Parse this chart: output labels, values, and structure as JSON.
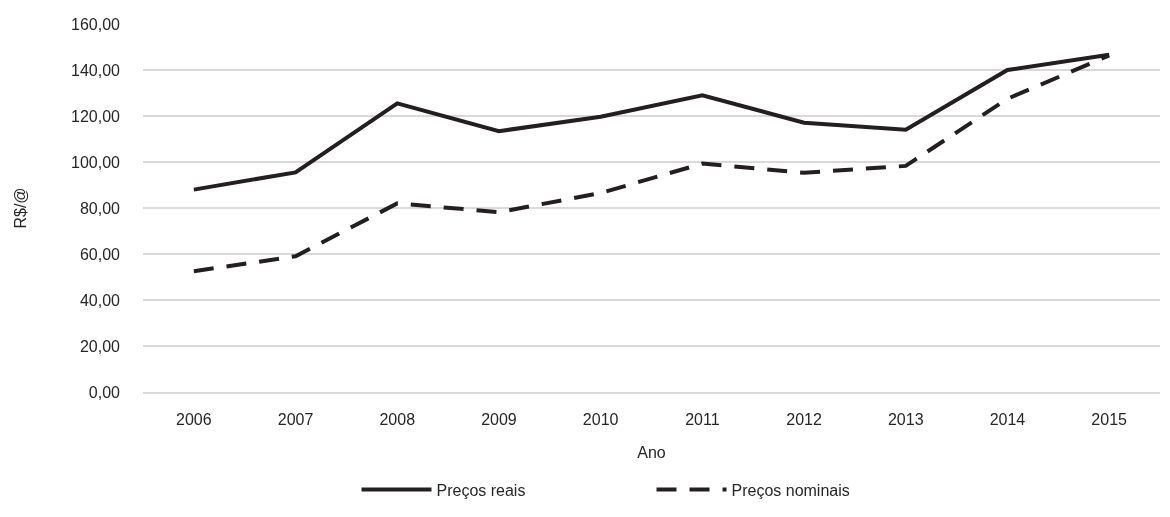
{
  "chart_data": {
    "type": "line",
    "xlabel": "Ano",
    "ylabel": "R$/@",
    "categories": [
      "2006",
      "2007",
      "2008",
      "2009",
      "2010",
      "2011",
      "2012",
      "2013",
      "2014",
      "2015"
    ],
    "series": [
      {
        "name": "Preços reais",
        "color": "#231f20",
        "line_style": "solid",
        "values": [
          88,
          95.5,
          125.5,
          113.4,
          119.7,
          129,
          117.1,
          114,
          140,
          146.6
        ]
      },
      {
        "name": "Preços nominais",
        "color": "#231f20",
        "line_style": "dashed",
        "values": [
          52.5,
          59,
          82,
          78.2,
          86.5,
          99.3,
          95.3,
          98.3,
          127.5,
          146.3
        ]
      }
    ],
    "ylim": [
      0,
      160
    ],
    "yticks": [
      {
        "value": 0,
        "label": "0,00"
      },
      {
        "value": 20,
        "label": "20,00"
      },
      {
        "value": 40,
        "label": "40,00"
      },
      {
        "value": 60,
        "label": "60,00"
      },
      {
        "value": 80,
        "label": "80,00"
      },
      {
        "value": 100,
        "label": "100,00"
      },
      {
        "value": 120,
        "label": "120,00"
      },
      {
        "value": 140,
        "label": "140,00"
      },
      {
        "value": 160,
        "label": "160,00"
      }
    ],
    "grid": "y",
    "legend": "bottom",
    "marker": "none"
  }
}
